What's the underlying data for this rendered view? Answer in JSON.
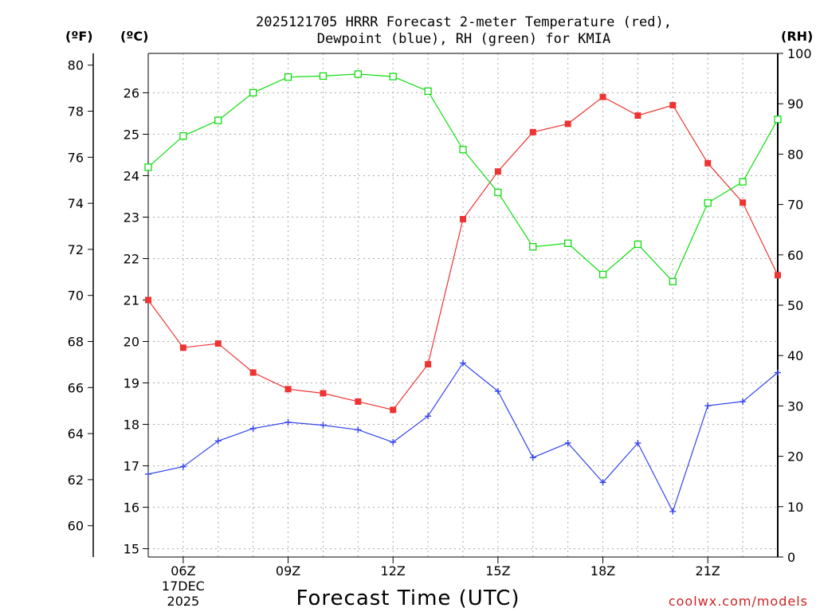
{
  "chart_data": {
    "type": "line",
    "title_lines": [
      "2025121705 HRRR Forecast 2-meter Temperature (red),",
      "Dewpoint (blue), RH (green) for KMIA"
    ],
    "unit_labels": {
      "fahrenheit": "(ºF)",
      "celsius": "(ºC)",
      "rh": "(RH)"
    },
    "xlabel": "Forecast Time (UTC)",
    "credit": "coolwx.com/models",
    "x_range": [
      5,
      23
    ],
    "x_ticks": [
      {
        "hour": 6,
        "label": "06Z",
        "sub": [
          "17DEC",
          "2025"
        ]
      },
      {
        "hour": 9,
        "label": "09Z",
        "sub": []
      },
      {
        "hour": 12,
        "label": "12Z",
        "sub": []
      },
      {
        "hour": 15,
        "label": "15Z",
        "sub": []
      },
      {
        "hour": 18,
        "label": "18Z",
        "sub": []
      },
      {
        "hour": 21,
        "label": "21Z",
        "sub": []
      }
    ],
    "hours": [
      5,
      6,
      7,
      8,
      9,
      10,
      11,
      12,
      13,
      14,
      15,
      16,
      17,
      18,
      19,
      20,
      21,
      22,
      23
    ],
    "celsius_axis": {
      "range": [
        14.8,
        26.95
      ],
      "ticks": [
        15,
        16,
        17,
        18,
        19,
        20,
        21,
        22,
        23,
        24,
        25,
        26
      ]
    },
    "fahrenheit_axis": {
      "ticks": [
        60,
        62,
        64,
        66,
        68,
        70,
        72,
        74,
        76,
        78,
        80
      ]
    },
    "rh_axis": {
      "range": [
        0,
        100
      ],
      "ticks": [
        0,
        10,
        20,
        30,
        40,
        50,
        60,
        70,
        80,
        90,
        100
      ]
    },
    "series": [
      {
        "name": "2-meter Temperature",
        "axis": "celsius",
        "color": "#ee3333",
        "marker": "filled-square",
        "values": [
          21.0,
          19.85,
          19.95,
          19.25,
          18.85,
          18.75,
          18.55,
          18.35,
          19.45,
          22.95,
          24.1,
          25.05,
          25.25,
          25.9,
          25.45,
          25.7,
          24.3,
          23.35,
          21.6
        ]
      },
      {
        "name": "Dewpoint",
        "axis": "celsius",
        "color": "#3344ee",
        "marker": "plus",
        "values": [
          16.8,
          16.98,
          17.6,
          17.9,
          18.05,
          17.98,
          17.87,
          17.57,
          18.2,
          19.48,
          18.8,
          17.2,
          17.55,
          16.6,
          17.55,
          15.9,
          18.45,
          18.55,
          19.25
        ]
      },
      {
        "name": "RH",
        "axis": "rh",
        "color": "#11dd11",
        "marker": "open-square",
        "values": [
          77.4,
          83.6,
          86.7,
          92.2,
          95.3,
          95.5,
          95.9,
          95.4,
          92.5,
          80.9,
          72.4,
          61.6,
          62.3,
          56.1,
          62.1,
          54.7,
          70.3,
          74.5,
          86.9
        ]
      }
    ]
  }
}
